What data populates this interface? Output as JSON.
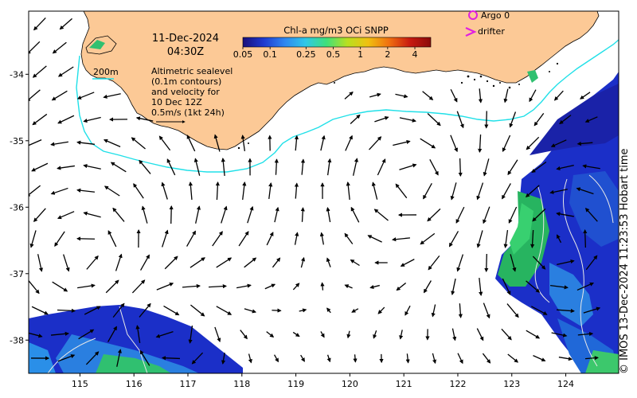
{
  "date_line": "11-Dec-2024",
  "time_line": "04:30Z",
  "colorbar": {
    "title": "Chl-a mg/m3 OCi SNPP",
    "ticks": [
      "0.05",
      "0.1",
      "0.25",
      "0.5",
      "1",
      "2",
      "4"
    ],
    "tick_values": [
      0.05,
      0.1,
      0.25,
      0.5,
      1,
      2,
      4
    ],
    "range": [
      0.05,
      6
    ],
    "scale": "log",
    "colors": [
      "#1a0f7a",
      "#1f3ad0",
      "#2f86f0",
      "#2fc8e8",
      "#3fe07a",
      "#b8e020",
      "#f0c010",
      "#f07010",
      "#c81a10",
      "#8a0a0a"
    ]
  },
  "legend": {
    "argo": "Argo 0",
    "drifter": "drifter",
    "argo_color": "#e020e0",
    "drifter_color": "#e020e0"
  },
  "isobath_label": "200m",
  "isobath_color": "#20e0e8",
  "altimetry_note": [
    "Altimetric sealevel",
    "(0.1m contours)",
    "and velocity for",
    "10 Dec 12Z",
    "0.5m/s (1kt 24h)"
  ],
  "land_color": "#fcc996",
  "credit": "© IMOS 13-Dec-2024 11:23:53 Hobart time",
  "axes": {
    "x_ticks": [
      "115",
      "116",
      "117",
      "118",
      "119",
      "120",
      "121",
      "122",
      "123",
      "124"
    ],
    "x_values": [
      115,
      116,
      117,
      118,
      119,
      120,
      121,
      122,
      123,
      124
    ],
    "y_ticks": [
      "-34",
      "-35",
      "-36",
      "-37",
      "-38"
    ],
    "y_values": [
      -34,
      -35,
      -36,
      -37,
      -38
    ],
    "lon_range": [
      114.05,
      124.98
    ],
    "lat_range": [
      -38.5,
      -33.05
    ]
  }
}
